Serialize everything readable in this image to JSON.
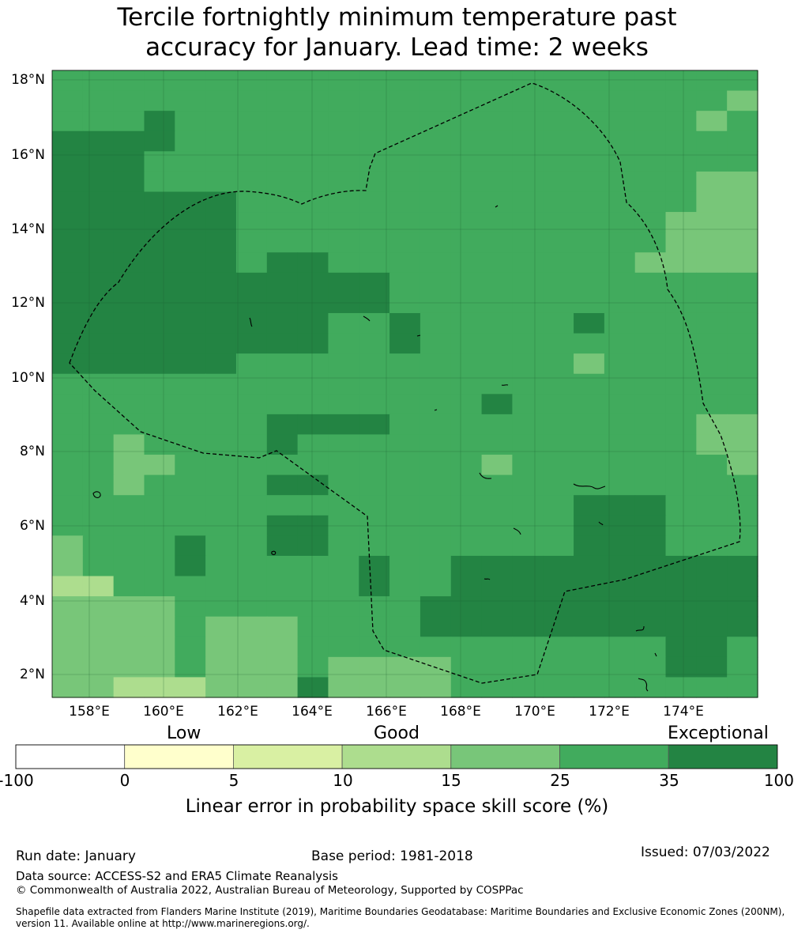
{
  "title": {
    "line1": "Tercile fortnightly minimum temperature past",
    "line2": "accuracy for January. Lead time: 2 weeks"
  },
  "axes": {
    "lat_ticks": [
      "18°N",
      "16°N",
      "14°N",
      "12°N",
      "10°N",
      "8°N",
      "6°N",
      "4°N",
      "2°N"
    ],
    "lon_ticks": [
      "158°E",
      "160°E",
      "162°E",
      "164°E",
      "166°E",
      "168°E",
      "170°E",
      "172°E",
      "174°E"
    ]
  },
  "colorbar": {
    "categories": [
      "Low",
      "Good",
      "Exceptional"
    ],
    "ticks": [
      "-100",
      "0",
      "5",
      "10",
      "15",
      "25",
      "35",
      "100"
    ],
    "colors": [
      "#ffffff",
      "#ffffcc",
      "#d9f0a3",
      "#addd8e",
      "#78c679",
      "#41ab5d",
      "#238443"
    ],
    "label": "Linear error in probability space skill score (%)"
  },
  "footer": {
    "run_date": "Run date: January",
    "base_period": "Base period: 1981-2018",
    "issued": "Issued: 07/03/2022",
    "data_source": "Data source: ACCESS-S2 and ERA5 Climate Reanalysis",
    "copyright": "© Commonwealth of Australia 2022, Australian Bureau of Meteorology, Supported by COSPPac",
    "shapefile_line1": "Shapefile data extracted from Flanders Marine Institute (2019), Maritime Boundaries Geodatabase: Maritime Boundaries and Exclusive Economic Zones (200NM),",
    "shapefile_line2": "version 11. Available online at http://www.marineregions.org/."
  },
  "chart_data": {
    "type": "heatmap",
    "title": "Tercile fortnightly minimum temperature past accuracy for January. Lead time: 2 weeks",
    "colorbar_label": "Linear error in probability space skill score (%)",
    "lon_range": [
      157.0,
      176.0
    ],
    "lat_range": [
      1.4,
      18.3
    ],
    "cell_size_deg": 0.833,
    "lon_cells": 23,
    "lat_cells": 31,
    "legend": {
      "L": "15-25",
      "M": "25-35",
      "D": "35-100",
      "P": "10-15"
    },
    "background_category": "M",
    "patches": [
      {
        "cat": "D",
        "rows": [
          2,
          3
        ],
        "cols": [
          3,
          3
        ]
      },
      {
        "cat": "D",
        "rows": [
          3,
          5
        ],
        "cols": [
          0,
          2
        ]
      },
      {
        "cat": "D",
        "rows": [
          6,
          14
        ],
        "cols": [
          0,
          0
        ]
      },
      {
        "cat": "D",
        "rows": [
          4,
          14
        ],
        "cols": [
          1,
          2
        ]
      },
      {
        "cat": "D",
        "rows": [
          6,
          9
        ],
        "cols": [
          3,
          5
        ]
      },
      {
        "cat": "D",
        "rows": [
          10,
          13
        ],
        "cols": [
          3,
          8
        ]
      },
      {
        "cat": "D",
        "rows": [
          9,
          13
        ],
        "cols": [
          7,
          8
        ]
      },
      {
        "cat": "D",
        "rows": [
          10,
          11
        ],
        "cols": [
          9,
          10
        ]
      },
      {
        "cat": "D",
        "rows": [
          12,
          13
        ],
        "cols": [
          11,
          11
        ]
      },
      {
        "cat": "D",
        "rows": [
          14,
          14
        ],
        "cols": [
          3,
          5
        ]
      },
      {
        "cat": "D",
        "rows": [
          17,
          17
        ],
        "cols": [
          7,
          10
        ]
      },
      {
        "cat": "D",
        "rows": [
          18,
          18
        ],
        "cols": [
          7,
          7
        ]
      },
      {
        "cat": "D",
        "rows": [
          20,
          20
        ],
        "cols": [
          7,
          8
        ]
      },
      {
        "cat": "D",
        "rows": [
          22,
          23
        ],
        "cols": [
          7,
          8
        ]
      },
      {
        "cat": "D",
        "rows": [
          23,
          24
        ],
        "cols": [
          4,
          4
        ]
      },
      {
        "cat": "D",
        "rows": [
          24,
          25
        ],
        "cols": [
          10,
          10
        ]
      },
      {
        "cat": "D",
        "rows": [
          24,
          27
        ],
        "cols": [
          13,
          22
        ]
      },
      {
        "cat": "D",
        "rows": [
          21,
          23
        ],
        "cols": [
          17,
          19
        ]
      },
      {
        "cat": "D",
        "rows": [
          26,
          27
        ],
        "cols": [
          12,
          13
        ]
      },
      {
        "cat": "D",
        "rows": [
          12,
          12
        ],
        "cols": [
          17,
          17
        ]
      },
      {
        "cat": "D",
        "rows": [
          16,
          16
        ],
        "cols": [
          14,
          14
        ]
      },
      {
        "cat": "D",
        "rows": [
          28,
          29
        ],
        "cols": [
          20,
          21
        ]
      },
      {
        "cat": "D",
        "rows": [
          30,
          30
        ],
        "cols": [
          8,
          9
        ]
      },
      {
        "cat": "L",
        "rows": [
          1,
          1
        ],
        "cols": [
          22,
          22
        ]
      },
      {
        "cat": "L",
        "rows": [
          2,
          2
        ],
        "cols": [
          21,
          21
        ]
      },
      {
        "cat": "L",
        "rows": [
          5,
          6
        ],
        "cols": [
          21,
          22
        ]
      },
      {
        "cat": "L",
        "rows": [
          7,
          9
        ],
        "cols": [
          20,
          22
        ]
      },
      {
        "cat": "L",
        "rows": [
          9,
          9
        ],
        "cols": [
          19,
          19
        ]
      },
      {
        "cat": "L",
        "rows": [
          14,
          14
        ],
        "cols": [
          17,
          17
        ]
      },
      {
        "cat": "L",
        "rows": [
          17,
          18
        ],
        "cols": [
          21,
          22
        ]
      },
      {
        "cat": "L",
        "rows": [
          19,
          19
        ],
        "cols": [
          22,
          22
        ]
      },
      {
        "cat": "L",
        "rows": [
          18,
          20
        ],
        "cols": [
          2,
          2
        ]
      },
      {
        "cat": "L",
        "rows": [
          19,
          19
        ],
        "cols": [
          3,
          3
        ]
      },
      {
        "cat": "L",
        "rows": [
          19,
          19
        ],
        "cols": [
          14,
          14
        ]
      },
      {
        "cat": "L",
        "rows": [
          23,
          25
        ],
        "cols": [
          0,
          0
        ]
      },
      {
        "cat": "L",
        "rows": [
          26,
          30
        ],
        "cols": [
          0,
          3
        ]
      },
      {
        "cat": "L",
        "rows": [
          27,
          30
        ],
        "cols": [
          5,
          7
        ]
      },
      {
        "cat": "L",
        "rows": [
          29,
          30
        ],
        "cols": [
          9,
          10
        ]
      },
      {
        "cat": "L",
        "rows": [
          29,
          30
        ],
        "cols": [
          11,
          12
        ]
      },
      {
        "cat": "P",
        "rows": [
          25,
          25
        ],
        "cols": [
          0,
          1
        ]
      },
      {
        "cat": "P",
        "rows": [
          30,
          30
        ],
        "cols": [
          2,
          4
        ]
      }
    ]
  }
}
